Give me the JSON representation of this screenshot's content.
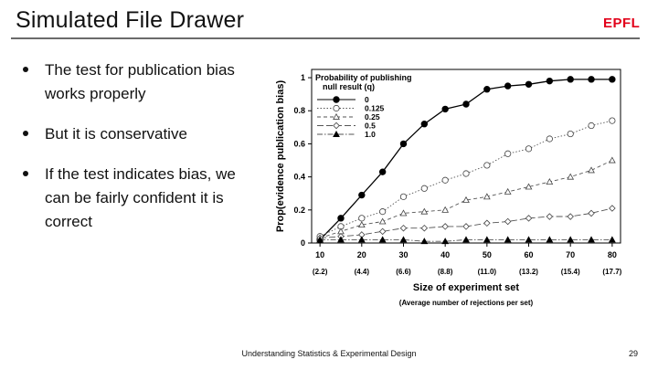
{
  "slide": {
    "title": "Simulated File Drawer",
    "logo": "EPFL",
    "bullets": [
      "The test for publication bias works properly",
      "But it is conservative",
      "If the test indicates bias, we can be fairly confident it is correct"
    ],
    "footer": "Understanding Statistics & Experimental Design",
    "page_number": "29",
    "accent_color": "#e2001a"
  },
  "chart_data": {
    "type": "line",
    "ylabel": "Prop(evidence publication bias)",
    "xlabel": "Size of experiment set",
    "xlabel2": "(Average number of rejections per set)",
    "x": [
      10,
      15,
      20,
      25,
      30,
      35,
      40,
      45,
      50,
      55,
      60,
      65,
      70,
      75,
      80
    ],
    "xticks": [
      "10",
      "20",
      "30",
      "40",
      "50",
      "60",
      "70",
      "80"
    ],
    "xticks2": [
      "(2.2)",
      "(4.4)",
      "(6.6)",
      "(8.8)",
      "(11.0)",
      "(13.2)",
      "(15.4)",
      "(17.7)"
    ],
    "yticks": [
      "0",
      "0.2",
      "0.4",
      "0.6",
      "0.8",
      "1"
    ],
    "xlim": [
      8,
      82
    ],
    "ylim": [
      0,
      1.05
    ],
    "legend_title": [
      "Probability of publishing",
      "null result (q)"
    ],
    "legend_position": "top-left",
    "series": [
      {
        "name": "0",
        "marker": "filled-circle",
        "dash": "solid",
        "values": [
          0.02,
          0.15,
          0.29,
          0.43,
          0.6,
          0.72,
          0.81,
          0.84,
          0.93,
          0.95,
          0.96,
          0.98,
          0.99,
          0.99,
          0.99
        ]
      },
      {
        "name": "0.125",
        "marker": "open-circle",
        "dash": "dotted",
        "values": [
          0.04,
          0.1,
          0.15,
          0.19,
          0.28,
          0.33,
          0.38,
          0.42,
          0.47,
          0.54,
          0.57,
          0.63,
          0.66,
          0.71,
          0.74
        ]
      },
      {
        "name": "0.25",
        "marker": "open-triangle",
        "dash": "dashed",
        "values": [
          0.03,
          0.07,
          0.11,
          0.13,
          0.18,
          0.19,
          0.2,
          0.26,
          0.28,
          0.31,
          0.34,
          0.37,
          0.4,
          0.44,
          0.5
        ]
      },
      {
        "name": "0.5",
        "marker": "open-diamond",
        "dash": "longdash",
        "values": [
          0.03,
          0.04,
          0.05,
          0.07,
          0.09,
          0.09,
          0.1,
          0.1,
          0.12,
          0.13,
          0.15,
          0.16,
          0.16,
          0.18,
          0.21
        ]
      },
      {
        "name": "1.0",
        "marker": "filled-triangle",
        "dash": "dashdot",
        "values": [
          0.02,
          0.02,
          0.02,
          0.02,
          0.02,
          0.01,
          0.01,
          0.02,
          0.02,
          0.02,
          0.02,
          0.02,
          0.02,
          0.02,
          0.02
        ]
      }
    ],
    "grid": false
  }
}
